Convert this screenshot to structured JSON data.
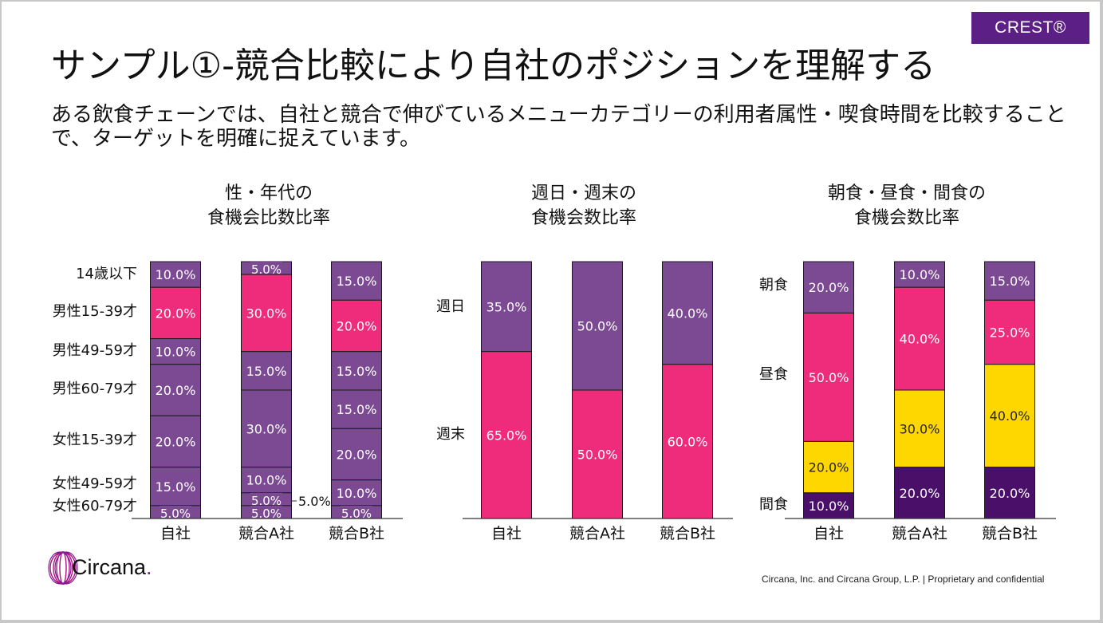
{
  "badge": "CREST®",
  "title": "サンプル①-競合比較により自社のポジションを理解する",
  "subtitle": "ある飲食チェーンでは、自社と競合で伸びているメニューカテゴリーの利用者属性・喫食時間を比較することで、ターゲットを明確に捉えています。",
  "logo_text": "Circana",
  "logo_dot": ".",
  "footer": {
    "company": "Circana, Inc. and Circana Group, L.P. |",
    "note": "Proprietary and confidential"
  },
  "colors": {
    "purple": "#7b4a93",
    "pink": "#ee2c7b",
    "yellow": "#ffd700",
    "dark_purple": "#4a0f68",
    "brand": "#5b1f85"
  },
  "chart_data": [
    {
      "type": "bar",
      "stacked": true,
      "title": [
        "性・年代の",
        "食機会比数比率"
      ],
      "categories": [
        "自社",
        "競合A社",
        "競合B社"
      ],
      "series": [
        {
          "name": "14歳以下",
          "values": [
            10.0,
            5.0,
            15.0
          ],
          "color": "#7b4a93"
        },
        {
          "name": "男性15-39才",
          "values": [
            20.0,
            30.0,
            20.0
          ],
          "color": "#ee2c7b"
        },
        {
          "name": "男性49-59才",
          "values": [
            10.0,
            15.0,
            15.0
          ],
          "color": "#7b4a93"
        },
        {
          "name": "男性60-79才",
          "values": [
            20.0,
            30.0,
            15.0
          ],
          "color": "#7b4a93"
        },
        {
          "name": "女性15-39才",
          "values": [
            20.0,
            10.0,
            20.0
          ],
          "color": "#7b4a93"
        },
        {
          "name": "女性49-59才",
          "values": [
            15.0,
            5.0,
            10.0
          ],
          "color": "#7b4a93"
        },
        {
          "name": "女性60-79才",
          "values": [
            5.0,
            5.0,
            5.0
          ],
          "color": "#7b4a93"
        }
      ],
      "legend_labels": [
        "14歳以下",
        "男性15-39才",
        "男性49-59才",
        "男性60-79才",
        "女性15-39才",
        "女性49-59才",
        "女性60-79才"
      ],
      "callout": "5.0%",
      "ylim": [
        0,
        100
      ]
    },
    {
      "type": "bar",
      "stacked": true,
      "title": [
        "週日・週末の",
        "食機会数比率"
      ],
      "categories": [
        "自社",
        "競合A社",
        "競合B社"
      ],
      "series": [
        {
          "name": "週日",
          "values": [
            35.0,
            50.0,
            40.0
          ],
          "color": "#7b4a93"
        },
        {
          "name": "週末",
          "values": [
            65.0,
            50.0,
            60.0
          ],
          "color": "#ee2c7b"
        }
      ],
      "legend_labels": [
        "週日",
        "週末"
      ],
      "ylim": [
        0,
        100
      ]
    },
    {
      "type": "bar",
      "stacked": true,
      "title": [
        "朝食・昼食・間食の",
        "食機会数比率"
      ],
      "categories": [
        "自社",
        "競合A社",
        "競合B社"
      ],
      "series": [
        {
          "name": "朝食",
          "values": [
            20.0,
            10.0,
            15.0
          ],
          "color": "#7b4a93"
        },
        {
          "name": "昼食",
          "values": [
            50.0,
            40.0,
            25.0
          ],
          "color": "#ee2c7b"
        },
        {
          "name": "",
          "values": [
            20.0,
            30.0,
            40.0
          ],
          "color": "#ffd700"
        },
        {
          "name": "間食",
          "values": [
            10.0,
            20.0,
            20.0
          ],
          "color": "#4a0f68"
        }
      ],
      "legend_labels": [
        "朝食",
        "昼食",
        "間食"
      ],
      "ylim": [
        0,
        100
      ]
    }
  ]
}
